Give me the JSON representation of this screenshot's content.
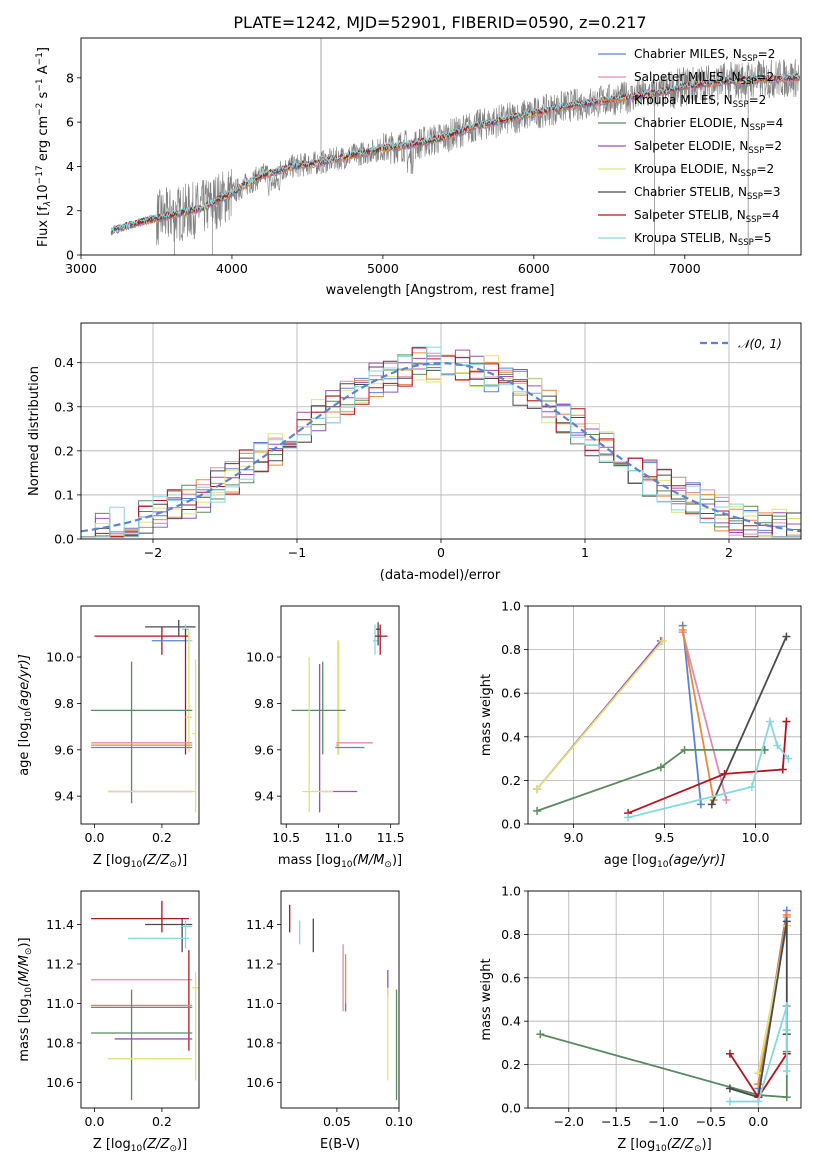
{
  "figure": {
    "title": "PLATE=1242, MJD=52901, FIBERID=0590, z=0.217"
  },
  "series_styles": [
    {
      "key": "chabrier_miles",
      "label": "Chabrier MILES, N",
      "n_ssp": "2",
      "color": "#5b82d6"
    },
    {
      "key": "salpeter_miles",
      "label": "Salpeter MILES, N",
      "n_ssp": "2",
      "color": "#e58ab0"
    },
    {
      "key": "kroupa_miles",
      "label": "Kroupa MILES, N",
      "n_ssp": "2",
      "color": "#e98a3a"
    },
    {
      "key": "chabrier_elodie",
      "label": "Chabrier ELODIE, N",
      "n_ssp": "4",
      "color": "#5a8a5e"
    },
    {
      "key": "salpeter_elodie",
      "label": "Salpeter ELODIE, N",
      "n_ssp": "2",
      "color": "#9c4fb8"
    },
    {
      "key": "kroupa_elodie",
      "label": "Kroupa ELODIE, N",
      "n_ssp": "2",
      "color": "#dfe37a"
    },
    {
      "key": "chabrier_stelib",
      "label": "Chabrier STELIB, N",
      "n_ssp": "3",
      "color": "#4a4a4a"
    },
    {
      "key": "salpeter_stelib",
      "label": "Salpeter STELIB, N",
      "n_ssp": "4",
      "color": "#b5141f"
    },
    {
      "key": "kroupa_stelib",
      "label": "Kroupa STELIB, N",
      "n_ssp": "5",
      "color": "#86d8e0"
    }
  ],
  "legend_sub": "SSP",
  "chart_data": [
    {
      "id": "spectrum",
      "type": "line",
      "xlabel": "wavelength [Angstrom, rest frame]",
      "ylabel_parts": [
        "Flux [f",
        "λ",
        "10",
        "−17",
        " erg cm",
        "−2",
        " s",
        "−1",
        " A",
        "−1",
        "]"
      ],
      "xlim": [
        3000,
        7770
      ],
      "ylim": [
        0,
        9.8
      ],
      "xticks": [
        "3000",
        "4000",
        "5000",
        "6000",
        "7000"
      ],
      "yticks": [
        "0",
        "2",
        "4",
        "6",
        "8"
      ],
      "legend": "upper right",
      "data_color": "#808080",
      "model_profile": {
        "x": [
          3200,
          3400,
          3600,
          3800,
          4000,
          4200,
          4400,
          4600,
          4800,
          5000,
          5200,
          5400,
          5600,
          5800,
          6000,
          6200,
          6400,
          6600,
          6800,
          7000,
          7200,
          7400,
          7700
        ],
        "y": [
          1.1,
          1.5,
          1.8,
          2.1,
          2.8,
          3.6,
          4.0,
          4.2,
          4.5,
          4.8,
          5.0,
          5.3,
          5.8,
          6.1,
          6.4,
          6.7,
          6.9,
          7.1,
          7.3,
          7.6,
          7.8,
          7.9,
          8.0
        ]
      }
    },
    {
      "id": "residuals",
      "type": "histogram",
      "xlabel": "(data-model)/error",
      "ylabel": "Normed distribution",
      "xlim": [
        -2.5,
        2.5
      ],
      "ylim": [
        0,
        0.49
      ],
      "xticks": [
        "−2",
        "−1",
        "0",
        "1",
        "2"
      ],
      "yticks": [
        "0.0",
        "0.1",
        "0.2",
        "0.3",
        "0.4"
      ],
      "bin_width": 0.1,
      "gaussian_label": "N(0, 1)",
      "gaussian_color": "#5b82d6",
      "legend": "upper right",
      "grid": true
    },
    {
      "id": "age_vs_z",
      "type": "errorbar",
      "xlabel": "Z [log",
      "xlabel2": "(Z/Z",
      "xlabel3": ")]",
      "ylabel": "age  [log",
      "ylabel2": "(age/yr)]",
      "xlim": [
        -0.04,
        0.31
      ],
      "ylim": [
        9.28,
        10.22
      ],
      "xticks": [
        "0.0",
        "0.2"
      ],
      "yticks": [
        "9.4",
        "9.6",
        "9.8",
        "10.0"
      ],
      "points": [
        {
          "s": 7,
          "x": 0.22,
          "xl": 0.13,
          "xh": 0.3,
          "y": 10.13,
          "yl": 10.06,
          "yh": 10.16
        },
        {
          "s": 7,
          "x": 0.27,
          "xl": 0.26,
          "xh": 0.28,
          "y": 10.09,
          "yl": 10.04,
          "yh": 10.13
        },
        {
          "s": 8,
          "x": 0.2,
          "xl": 0.0,
          "xh": 0.3,
          "y": 10.09,
          "yl": 10.01,
          "yh": 10.14
        },
        {
          "s": 8,
          "x": 0.27,
          "xl": 0.26,
          "xh": 0.28,
          "y": 9.74,
          "yl": 9.58,
          "yh": 10.12
        },
        {
          "s": 8,
          "x": 0.28,
          "xl": 0.27,
          "xh": 0.29,
          "y": 9.62,
          "yl": 9.58,
          "yh": 9.74
        },
        {
          "s": 8,
          "x": 0.29,
          "xl": 0.28,
          "xh": 0.3,
          "y": 9.4,
          "yl": 9.38,
          "yh": 9.44
        },
        {
          "s": 8,
          "x": 0.3,
          "xl": 0.29,
          "xh": 0.31,
          "y": 9.35,
          "yl": 9.3,
          "yh": 9.42
        },
        {
          "s": 8,
          "x": 0.3,
          "xl": 0.29,
          "xh": 0.31,
          "y": 9.42,
          "yl": 9.36,
          "yh": 9.5
        },
        {
          "s": 8,
          "x": 0.3,
          "xl": 0.29,
          "xh": 0.31,
          "y": 9.49,
          "yl": 9.46,
          "yh": 9.52
        },
        {
          "s": 8,
          "x": 0.3,
          "xl": 0.29,
          "xh": 0.31,
          "y": 9.52,
          "yl": 9.48,
          "yh": 9.56
        },
        {
          "s": 8,
          "x": 0.3,
          "xl": 0.29,
          "xh": 0.31,
          "y": 9.53,
          "yl": 9.49,
          "yh": 9.57
        },
        {
          "s": 8,
          "x": 0.3,
          "xl": 0.29,
          "xh": 0.31,
          "y": 9.58,
          "yl": 9.54,
          "yh": 9.62
        },
        {
          "s": 8,
          "x": 0.3,
          "xl": 0.29,
          "xh": 0.31,
          "y": 9.61,
          "yl": 9.57,
          "yh": 9.65
        },
        {
          "s": 8,
          "x": 0.3,
          "xl": 0.29,
          "xh": 0.31,
          "y": 9.65,
          "yl": 9.6,
          "yh": 9.7
        },
        {
          "s": 8,
          "x": 0.3,
          "xl": 0.29,
          "xh": 0.31,
          "y": 9.68,
          "yl": 9.63,
          "yh": 9.73
        },
        {
          "s": 8,
          "x": 0.3,
          "xl": 0.29,
          "xh": 0.31,
          "y": 9.73,
          "yl": 9.68,
          "yh": 9.78
        },
        {
          "s": 8,
          "x": 0.3,
          "xl": 0.29,
          "xh": 0.31,
          "y": 9.77,
          "yl": 9.72,
          "yh": 9.82
        },
        {
          "s": 8,
          "x": 0.3,
          "xl": 0.29,
          "xh": 0.31,
          "y": 9.8,
          "yl": 9.75,
          "yh": 9.85
        },
        {
          "s": 8,
          "x": 0.3,
          "xl": 0.29,
          "xh": 0.31,
          "y": 9.84,
          "yl": 9.79,
          "yh": 9.89
        },
        {
          "s": 8,
          "x": 0.3,
          "xl": 0.29,
          "xh": 0.31,
          "y": 9.88,
          "yl": 9.83,
          "yh": 9.93
        },
        {
          "s": 8,
          "x": 0.3,
          "xl": 0.29,
          "xh": 0.31,
          "y": 9.92,
          "yl": 9.87,
          "yh": 9.97
        },
        {
          "s": 8,
          "x": 0.3,
          "xl": 0.29,
          "xh": 0.31,
          "y": 9.95,
          "yl": 9.9,
          "yh": 10.0
        },
        {
          "s": 8,
          "x": 0.3,
          "xl": 0.29,
          "xh": 0.31,
          "y": 9.99,
          "yl": 9.94,
          "yh": 10.04
        },
        {
          "s": 8,
          "x": 0.3,
          "xl": 0.29,
          "xh": 0.31,
          "y": 10.03,
          "yl": 9.98,
          "yh": 10.08
        },
        {
          "s": 8,
          "x": 0.3,
          "xl": 0.29,
          "xh": 0.31,
          "y": 10.06,
          "yl": 10.01,
          "yh": 10.11
        },
        {
          "s": 8,
          "x": 0.3,
          "xl": 0.29,
          "xh": 0.31,
          "y": 10.09,
          "yl": 10.04,
          "yh": 10.14
        },
        {
          "s": 8,
          "x": 0.3,
          "xl": 0.29,
          "xh": 0.31,
          "y": 10.13,
          "yl": 10.08,
          "yh": 10.18
        },
        {
          "s": 8,
          "x": 0.3,
          "xl": 0.29,
          "xh": 0.31,
          "y": 10.16,
          "yl": 10.11,
          "yh": 10.2
        },
        {
          "s": 8,
          "x": 0.3,
          "xl": 0.29,
          "xh": 0.31,
          "y": 10.19,
          "yl": 10.15,
          "yh": 10.22
        },
        {
          "s": 8,
          "x": 0.3,
          "xl": 0.29,
          "xh": 0.31,
          "y": 10.2,
          "yl": 10.16,
          "yh": 10.22
        },
        {
          "s": 8,
          "x": 0.3,
          "xl": 0.29,
          "xh": 0.31,
          "y": 10.21,
          "yl": 10.17,
          "yh": 10.22
        },
        {
          "s": 8,
          "x": 0.3,
          "xl": 0.29,
          "xh": 0.31,
          "y": 10.22,
          "yl": 10.18,
          "yh": 10.22
        },
        {
          "s": 8,
          "x": 0.3,
          "xl": 0.29,
          "xh": 0.31,
          "y": 10.22,
          "yl": 10.18,
          "yh": 10.22
        },
        {
          "s": 8,
          "x": 0.3,
          "xl": 0.29,
          "xh": 0.31,
          "y": 10.22,
          "yl": 10.18,
          "yh": 10.22
        },
        {
          "s": 8,
          "x": 0.3,
          "xl": 0.29,
          "xh": 0.31,
          "y": 10.22,
          "yl": 10.18,
          "yh": 10.22
        },
        {
          "s": 8,
          "x": 0.3,
          "xl": 0.29,
          "xh": 0.31,
          "y": 10.22,
          "yl": 10.18,
          "yh": 10.22
        },
        {
          "s": 8,
          "x": 0.3,
          "xl": 0.29,
          "xh": 0.31,
          "y": 10.22,
          "yl": 10.18,
          "yh": 10.22
        },
        {
          "s": 8,
          "x": 0.3,
          "xl": 0.29,
          "xh": 0.31,
          "y": 10.22,
          "yl": 10.18,
          "yh": 10.22
        },
        {
          "s": 8,
          "x": 0.3,
          "xl": 0.29,
          "xh": 0.31,
          "y": 10.22,
          "yl": 10.18,
          "yh": 10.22
        },
        {
          "s": 8,
          "x": 0.3,
          "xl": 0.29,
          "xh": 0.31,
          "y": 10.22,
          "yl": 10.18,
          "yh": 10.22
        },
        {
          "s": 8,
          "x": 0.3,
          "xl": 0.29,
          "xh": 0.31,
          "y": 10.22,
          "yl": 10.18,
          "yh": 10.22
        },
        {
          "s": 8,
          "x": 0.3,
          "xl": 0.29,
          "xh": 0.31,
          "y": 10.22,
          "yl": 10.18,
          "yh": 10.22
        },
        {
          "s": 8,
          "x": 0.3,
          "xl": 0.29,
          "xh": 0.31,
          "y": 10.22,
          "yl": 10.18,
          "yh": 10.22
        },
        {
          "s": 8,
          "x": 0.3,
          "xl": 0.29,
          "xh": 0.31,
          "y": 10.22,
          "yl": 10.18,
          "yh": 10.22
        },
        {
          "s": 8,
          "x": 0.3,
          "xl": 0.29,
          "xh": 0.31,
          "y": 10.22,
          "yl": 10.18,
          "yh": 10.22
        },
        {
          "s": 8,
          "x": 0.3,
          "xl": 0.29,
          "xh": 0.31,
          "y": 10.22,
          "yl": 10.18,
          "yh": 10.22
        },
        {
          "s": 8,
          "x": 0.3,
          "xl": 0.29,
          "xh": 0.31,
          "y": 10.22,
          "yl": 10.18,
          "yh": 10.22
        },
        {
          "s": 8,
          "x": 0.3,
          "xl": 0.29,
          "xh": 0.31,
          "y": 10.22,
          "yl": 10.18,
          "yh": 10.22
        },
        {
          "s": 8,
          "x": 0.3,
          "xl": 0.29,
          "xh": 0.31,
          "y": 10.22,
          "yl": 10.18,
          "yh": 10.22
        }
      ]
    }
  ]
}
